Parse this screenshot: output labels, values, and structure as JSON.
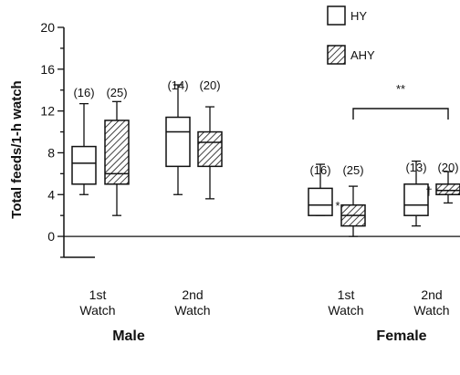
{
  "chart_data": {
    "type": "box",
    "ylabel": "Total feeds/1-h watch",
    "yticks": [
      "0",
      "4",
      "8",
      "12",
      "16",
      "20"
    ],
    "ylim": [
      -2,
      20
    ],
    "groups": [
      {
        "label": "Male",
        "categories": [
          "1st Watch",
          "2nd Watch"
        ]
      },
      {
        "label": "Female",
        "categories": [
          "1st Watch",
          "2nd Watch"
        ]
      }
    ],
    "category_lines": {
      "1st Watch": [
        "1st",
        "Watch"
      ],
      "2nd Watch": [
        "2nd",
        "Watch"
      ]
    },
    "series": [
      {
        "name": "HY",
        "pattern": "open"
      },
      {
        "name": "AHY",
        "pattern": "hatched"
      }
    ],
    "boxes": [
      {
        "group": "Male",
        "category": "1st Watch",
        "series": "HY",
        "n_label": "(16)",
        "min": 4,
        "q1": 5,
        "median": 7,
        "q3": 8.6,
        "max": 12.7
      },
      {
        "group": "Male",
        "category": "1st Watch",
        "series": "AHY",
        "n_label": "(25)",
        "min": 2,
        "q1": 5,
        "median": 6,
        "q3": 11.1,
        "max": 12.9
      },
      {
        "group": "Male",
        "category": "2nd Watch",
        "series": "HY",
        "n_label": "(14)",
        "min": 4,
        "q1": 6.7,
        "median": 10,
        "q3": 11.4,
        "max": 14.5
      },
      {
        "group": "Male",
        "category": "2nd Watch",
        "series": "AHY",
        "n_label": "(20)",
        "min": 3.6,
        "q1": 6.7,
        "median": 9,
        "q3": 10,
        "max": 12.4
      },
      {
        "group": "Female",
        "category": "1st Watch",
        "series": "HY",
        "n_label": "(16)",
        "min": 2,
        "q1": 2,
        "median": 3,
        "q3": 4.6,
        "max": 6.9
      },
      {
        "group": "Female",
        "category": "1st Watch",
        "series": "AHY",
        "n_label": "(25)",
        "min": 0,
        "q1": 1,
        "median": 2,
        "q3": 3,
        "max": 4.8
      },
      {
        "group": "Female",
        "category": "2nd Watch",
        "series": "HY",
        "n_label": "(13)",
        "min": 1,
        "q1": 2,
        "median": 3,
        "q3": 5,
        "max": 7.2
      },
      {
        "group": "Female",
        "category": "2nd Watch",
        "series": "AHY",
        "n_label": "(20)",
        "min": 3.2,
        "q1": 4,
        "median": 4.4,
        "q3": 5,
        "max": 6.2
      }
    ],
    "annotations": [
      {
        "text": "*",
        "near": "Female 1st Watch HY"
      },
      {
        "text": "†",
        "near": "Female 2nd Watch HY"
      },
      {
        "text": "**",
        "bracket": "Female 1st Watch AHY to Female 2nd Watch AHY"
      }
    ],
    "zero_line": true,
    "legend": "top-right"
  }
}
